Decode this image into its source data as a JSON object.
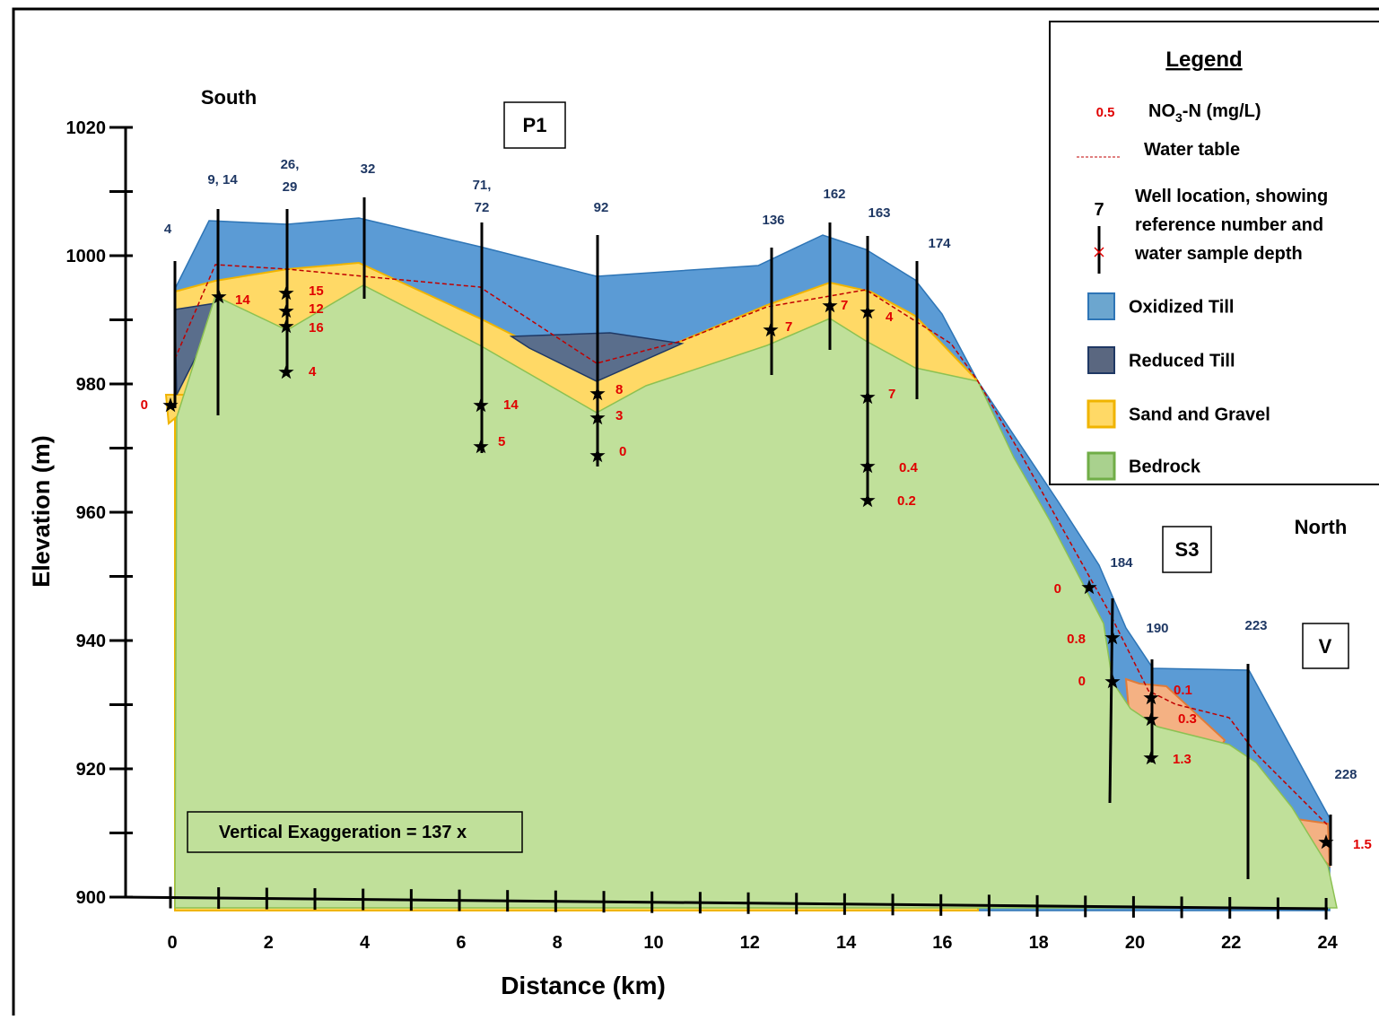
{
  "header": {
    "south": "South",
    "north": "North",
    "boxes": [
      "P1",
      "S3",
      "V"
    ],
    "exaggeration": "Vertical Exaggeration = 137 x"
  },
  "axes": {
    "y_title": "Elevation (m)",
    "x_title": "Distance (km)",
    "y_labels": [
      "1020",
      "1000",
      "980",
      "960",
      "940",
      "920",
      "900"
    ],
    "x_labels": [
      "0",
      "2",
      "4",
      "6",
      "8",
      "10",
      "12",
      "14",
      "16",
      "18",
      "20",
      "22",
      "24"
    ]
  },
  "legend": {
    "title": "Legend",
    "sample_value": "0.5",
    "nitrate": {
      "main": "NO",
      "sub": "3",
      "rest": "-N (mg/L)"
    },
    "water_table": "Water table",
    "well_number": "7",
    "well_lines": [
      "Well location, showing",
      "reference number and",
      "water sample depth"
    ],
    "layers": [
      "Oxidized Till",
      "Reduced Till",
      "Sand and Gravel",
      "Bedrock"
    ]
  },
  "wells": [
    [
      "4"
    ],
    [
      "9, 14"
    ],
    [
      "26,",
      "29"
    ],
    [
      "32"
    ],
    [
      "71,",
      "72"
    ],
    [
      "92"
    ],
    [
      "136"
    ],
    [
      "162"
    ],
    [
      "163"
    ],
    [
      "174"
    ],
    [
      "184"
    ],
    [
      "190"
    ],
    [
      "223"
    ],
    [
      "228"
    ]
  ],
  "samples": [
    "0",
    "14",
    "15",
    "12",
    "16",
    "4",
    "14",
    "5",
    "8",
    "3",
    "0",
    "7",
    "7",
    "4",
    "7",
    "0.4",
    "0.2",
    "0",
    "0.8",
    "0",
    "0.1",
    "0.3",
    "1.3",
    "1.5"
  ]
}
